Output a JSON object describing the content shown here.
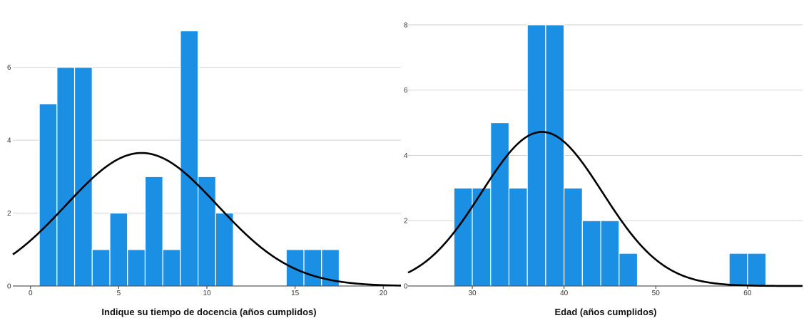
{
  "colors": {
    "bar": "#1a8fe3",
    "bar_edge": "#ffffff",
    "curve": "#000000",
    "grid": "#d3d3d3",
    "axis": "#333333"
  },
  "chart_data": [
    {
      "type": "bar",
      "variant": "histogram-with-normal-curve",
      "xlabel": "Indique su tiempo de docencia (años cumplidos)",
      "ylabel": "",
      "xlim": [
        -1,
        21
      ],
      "ylim": [
        0,
        7.3
      ],
      "x_ticks": [
        0,
        5,
        10,
        15,
        20
      ],
      "y_ticks": [
        0,
        2,
        4,
        6
      ],
      "grid": "horizontal",
      "bin_width": 1,
      "bins": [
        {
          "start": 0.5,
          "count": 5
        },
        {
          "start": 1.5,
          "count": 6
        },
        {
          "start": 2.5,
          "count": 6
        },
        {
          "start": 3.5,
          "count": 1
        },
        {
          "start": 4.5,
          "count": 2
        },
        {
          "start": 5.5,
          "count": 1
        },
        {
          "start": 6.5,
          "count": 3
        },
        {
          "start": 7.5,
          "count": 1
        },
        {
          "start": 8.5,
          "count": 7
        },
        {
          "start": 9.5,
          "count": 3
        },
        {
          "start": 10.5,
          "count": 2
        },
        {
          "start": 14.5,
          "count": 1
        },
        {
          "start": 15.5,
          "count": 1
        },
        {
          "start": 16.5,
          "count": 1
        }
      ],
      "normal_curve": {
        "mean": 6.3,
        "sd": 4.3,
        "peak": 3.65
      }
    },
    {
      "type": "bar",
      "variant": "histogram-with-normal-curve",
      "xlabel": "Edad (años cumplidos)",
      "ylabel": "",
      "xlim": [
        23,
        66
      ],
      "ylim": [
        0,
        8.15
      ],
      "x_ticks": [
        30,
        40,
        50,
        60
      ],
      "y_ticks": [
        0,
        2,
        4,
        6,
        8
      ],
      "grid": "horizontal",
      "bin_width": 2,
      "bins": [
        {
          "start": 28,
          "count": 3
        },
        {
          "start": 30,
          "count": 3
        },
        {
          "start": 32,
          "count": 5
        },
        {
          "start": 34,
          "count": 3
        },
        {
          "start": 36,
          "count": 8
        },
        {
          "start": 38,
          "count": 8
        },
        {
          "start": 40,
          "count": 3
        },
        {
          "start": 42,
          "count": 2
        },
        {
          "start": 44,
          "count": 2
        },
        {
          "start": 46,
          "count": 1
        },
        {
          "start": 58,
          "count": 1
        },
        {
          "start": 60,
          "count": 1
        }
      ],
      "normal_curve": {
        "mean": 37.6,
        "sd": 6.6,
        "peak": 4.72
      }
    }
  ]
}
